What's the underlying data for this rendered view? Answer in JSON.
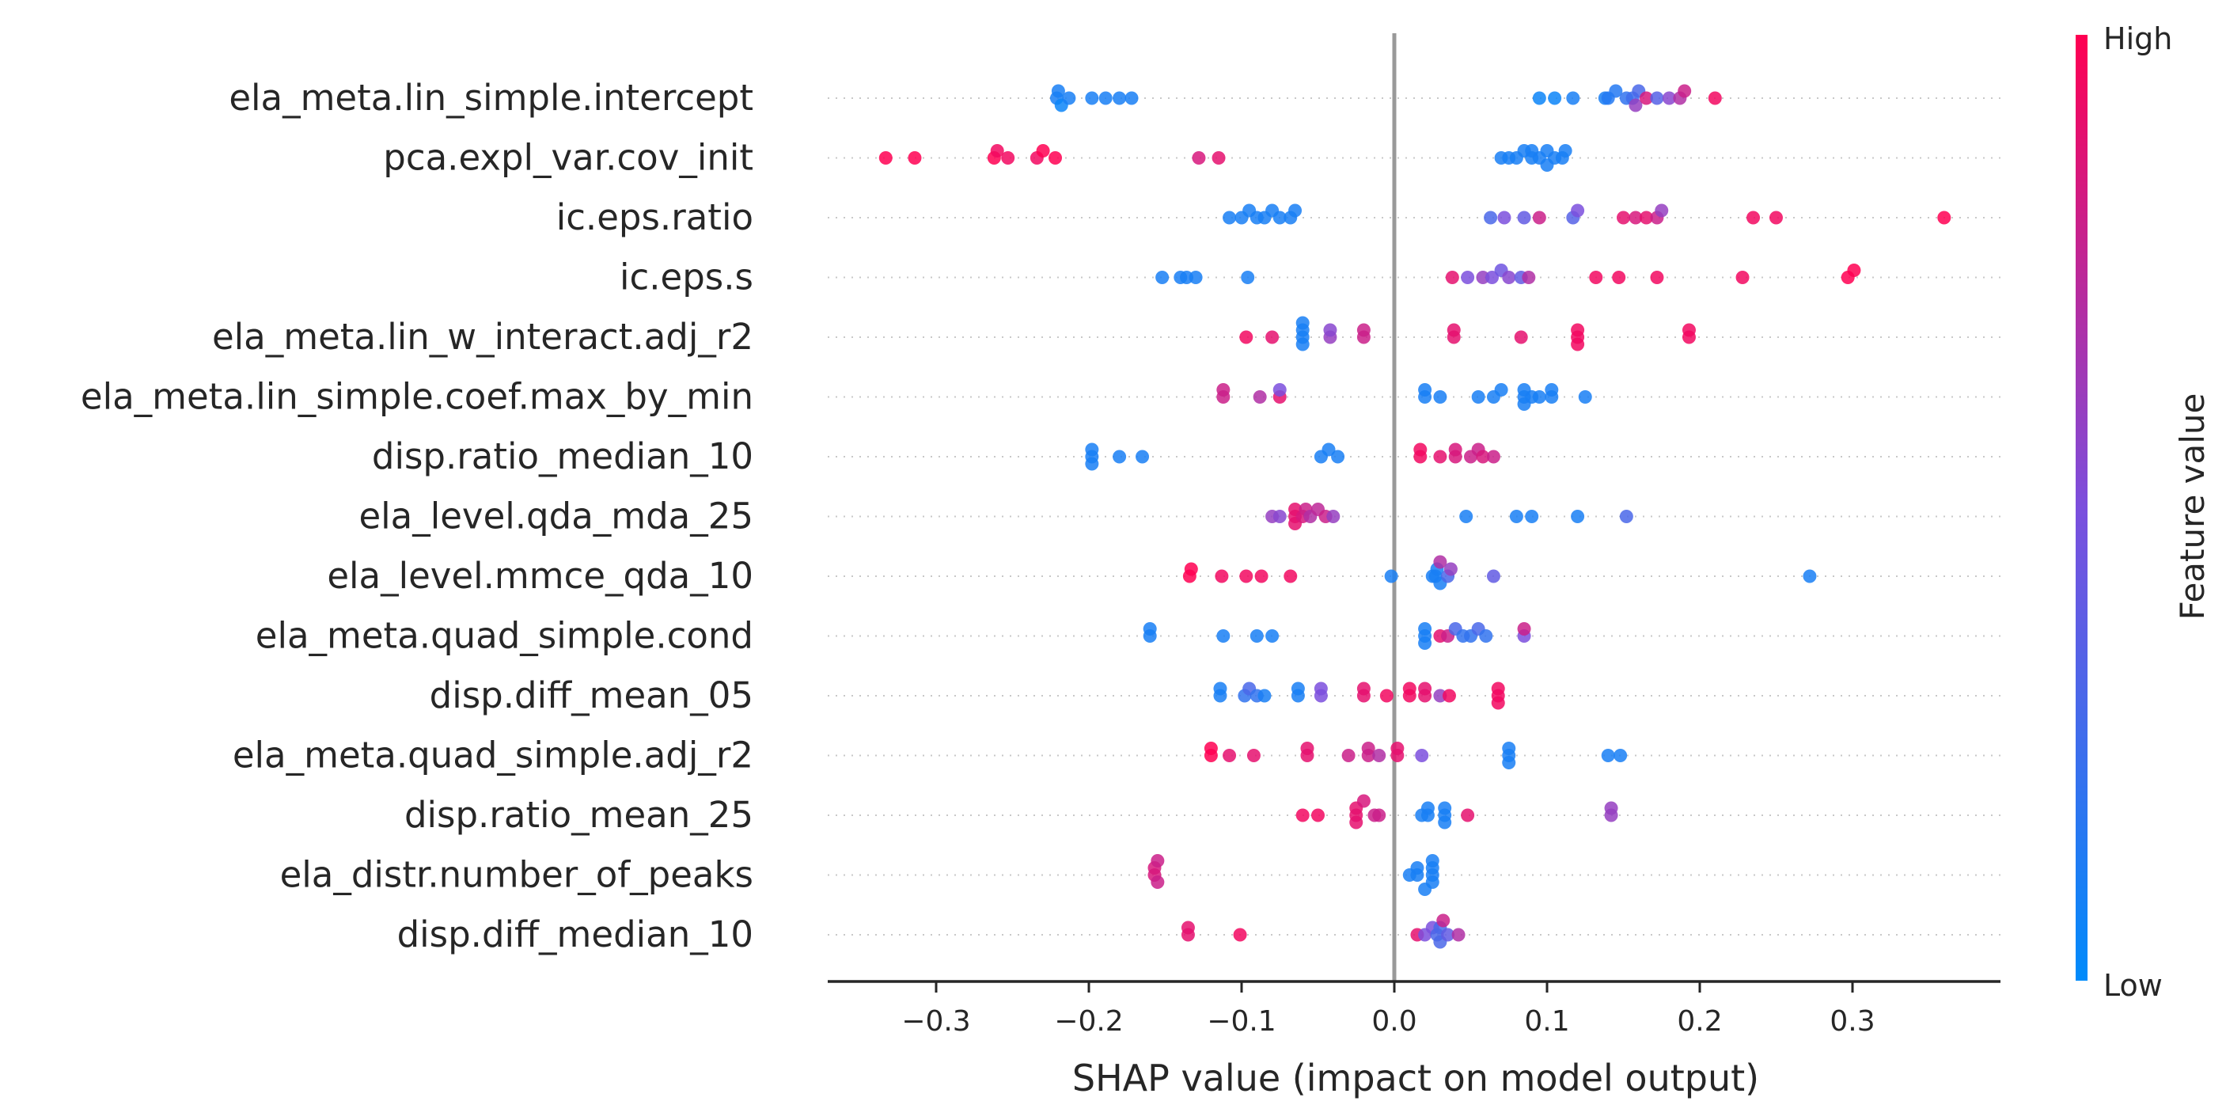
{
  "chart_data": {
    "type": "scatter",
    "subtype": "shap-beeswarm",
    "xlabel": "SHAP value (impact on model output)",
    "xlim": [
      -0.37,
      0.39
    ],
    "xticks": [
      "−0.3",
      "−0.2",
      "−0.1",
      "0.0",
      "0.1",
      "0.2",
      "0.3"
    ],
    "xtick_values": [
      -0.3,
      -0.2,
      -0.1,
      0.0,
      0.1,
      0.2,
      0.3
    ],
    "zero_line": true,
    "colorbar": {
      "label": "Feature value",
      "high_label": "High",
      "low_label": "Low",
      "low_color": "#008bfb",
      "high_color": "#ff0052"
    },
    "features": [
      {
        "name": "ela_meta.lin_simple.intercept",
        "points": [
          [
            -0.221,
            0.1
          ],
          [
            -0.22,
            0.1
          ],
          [
            -0.218,
            0.05
          ],
          [
            -0.213,
            0.1
          ],
          [
            -0.198,
            0.1
          ],
          [
            -0.189,
            0.1
          ],
          [
            -0.18,
            0.1
          ],
          [
            -0.172,
            0.1
          ],
          [
            0.095,
            0.05
          ],
          [
            0.105,
            0.05
          ],
          [
            0.117,
            0.1
          ],
          [
            0.138,
            0.1
          ],
          [
            0.14,
            0.15
          ],
          [
            0.145,
            0.15
          ],
          [
            0.152,
            0.2
          ],
          [
            0.156,
            0.25
          ],
          [
            0.16,
            0.3
          ],
          [
            0.158,
            0.6
          ],
          [
            0.165,
            0.85
          ],
          [
            0.172,
            0.35
          ],
          [
            0.18,
            0.55
          ],
          [
            0.187,
            0.7
          ],
          [
            0.19,
            0.8
          ],
          [
            0.21,
            0.95
          ]
        ]
      },
      {
        "name": "pca.expl_var.cov_init",
        "points": [
          [
            -0.333,
            1
          ],
          [
            -0.314,
            1
          ],
          [
            -0.262,
            1
          ],
          [
            -0.26,
            0.95
          ],
          [
            -0.253,
            0.95
          ],
          [
            -0.234,
            0.95
          ],
          [
            -0.23,
            1
          ],
          [
            -0.222,
            1
          ],
          [
            -0.128,
            0.85
          ],
          [
            -0.115,
            0.9
          ],
          [
            0.07,
            0.1
          ],
          [
            0.075,
            0.1
          ],
          [
            0.08,
            0.1
          ],
          [
            0.085,
            0.1
          ],
          [
            0.09,
            0.1
          ],
          [
            0.095,
            0.1
          ],
          [
            0.1,
            0.1
          ],
          [
            0.105,
            0.1
          ],
          [
            0.11,
            0.1
          ],
          [
            0.112,
            0.1
          ],
          [
            0.09,
            0.1
          ],
          [
            0.1,
            0.1
          ]
        ]
      },
      {
        "name": "ic.eps.ratio",
        "points": [
          [
            -0.108,
            0.1
          ],
          [
            -0.1,
            0.1
          ],
          [
            -0.095,
            0.1
          ],
          [
            -0.09,
            0.1
          ],
          [
            -0.085,
            0.1
          ],
          [
            -0.08,
            0.1
          ],
          [
            -0.075,
            0.1
          ],
          [
            -0.068,
            0.1
          ],
          [
            -0.065,
            0.1
          ],
          [
            0.063,
            0.3
          ],
          [
            0.072,
            0.5
          ],
          [
            0.085,
            0.4
          ],
          [
            0.095,
            0.8
          ],
          [
            0.117,
            0.35
          ],
          [
            0.12,
            0.5
          ],
          [
            0.15,
            0.9
          ],
          [
            0.158,
            0.85
          ],
          [
            0.165,
            0.9
          ],
          [
            0.172,
            0.8
          ],
          [
            0.175,
            0.6
          ],
          [
            0.235,
            0.95
          ],
          [
            0.25,
            0.95
          ],
          [
            0.36,
            1
          ]
        ]
      },
      {
        "name": "ic.eps.s",
        "points": [
          [
            -0.152,
            0.1
          ],
          [
            -0.14,
            0.1
          ],
          [
            -0.136,
            0.1
          ],
          [
            -0.13,
            0.1
          ],
          [
            -0.096,
            0.1
          ],
          [
            0.038,
            0.9
          ],
          [
            0.048,
            0.5
          ],
          [
            0.058,
            0.6
          ],
          [
            0.064,
            0.5
          ],
          [
            0.07,
            0.45
          ],
          [
            0.075,
            0.55
          ],
          [
            0.083,
            0.4
          ],
          [
            0.088,
            0.7
          ],
          [
            0.132,
            0.95
          ],
          [
            0.147,
            0.95
          ],
          [
            0.172,
            0.95
          ],
          [
            0.228,
            0.95
          ],
          [
            0.297,
            1
          ],
          [
            0.301,
            1
          ]
        ]
      },
      {
        "name": "ela_meta.lin_w_interact.adj_r2",
        "points": [
          [
            -0.097,
            0.95
          ],
          [
            -0.08,
            0.9
          ],
          [
            -0.06,
            0.1
          ],
          [
            -0.06,
            0.1
          ],
          [
            -0.06,
            0.1
          ],
          [
            -0.06,
            0.1
          ],
          [
            -0.042,
            0.6
          ],
          [
            -0.042,
            0.55
          ],
          [
            -0.02,
            0.8
          ],
          [
            -0.02,
            0.8
          ],
          [
            0.039,
            0.9
          ],
          [
            0.039,
            0.9
          ],
          [
            0.083,
            0.9
          ],
          [
            0.12,
            0.95
          ],
          [
            0.12,
            0.95
          ],
          [
            0.12,
            0.95
          ],
          [
            0.193,
            0.95
          ],
          [
            0.193,
            0.95
          ]
        ]
      },
      {
        "name": "ela_meta.lin_simple.coef.max_by_min",
        "points": [
          [
            -0.112,
            0.8
          ],
          [
            -0.112,
            0.8
          ],
          [
            -0.088,
            0.7
          ],
          [
            -0.075,
            0.9
          ],
          [
            -0.075,
            0.5
          ],
          [
            0.02,
            0.1
          ],
          [
            0.02,
            0.1
          ],
          [
            0.03,
            0.1
          ],
          [
            0.055,
            0.1
          ],
          [
            0.065,
            0.1
          ],
          [
            0.07,
            0.1
          ],
          [
            0.085,
            0.1
          ],
          [
            0.085,
            0.1
          ],
          [
            0.085,
            0.1
          ],
          [
            0.09,
            0.1
          ],
          [
            0.095,
            0.1
          ],
          [
            0.103,
            0.1
          ],
          [
            0.103,
            0.1
          ],
          [
            0.125,
            0.1
          ]
        ]
      },
      {
        "name": "disp.ratio_median_10",
        "points": [
          [
            -0.198,
            0.1
          ],
          [
            -0.198,
            0.1
          ],
          [
            -0.198,
            0.1
          ],
          [
            -0.18,
            0.1
          ],
          [
            -0.165,
            0.1
          ],
          [
            -0.048,
            0.1
          ],
          [
            -0.043,
            0.1
          ],
          [
            -0.037,
            0.1
          ],
          [
            0.017,
            0.95
          ],
          [
            0.017,
            0.95
          ],
          [
            0.03,
            0.9
          ],
          [
            0.04,
            0.85
          ],
          [
            0.04,
            0.85
          ],
          [
            0.05,
            0.8
          ],
          [
            0.055,
            0.8
          ],
          [
            0.058,
            0.85
          ],
          [
            0.065,
            0.8
          ]
        ]
      },
      {
        "name": "ela_level.qda_mda_25",
        "points": [
          [
            -0.08,
            0.6
          ],
          [
            -0.075,
            0.55
          ],
          [
            -0.065,
            0.9
          ],
          [
            -0.065,
            0.9
          ],
          [
            -0.065,
            0.9
          ],
          [
            -0.06,
            0.85
          ],
          [
            -0.058,
            0.8
          ],
          [
            -0.055,
            0.7
          ],
          [
            -0.05,
            0.75
          ],
          [
            -0.045,
            0.8
          ],
          [
            -0.04,
            0.6
          ],
          [
            0.047,
            0.1
          ],
          [
            0.08,
            0.1
          ],
          [
            0.09,
            0.1
          ],
          [
            0.12,
            0.1
          ],
          [
            0.152,
            0.3
          ]
        ]
      },
      {
        "name": "ela_level.mmce_qda_10",
        "points": [
          [
            -0.134,
            1
          ],
          [
            -0.133,
            1
          ],
          [
            -0.113,
            0.95
          ],
          [
            -0.097,
            0.95
          ],
          [
            -0.087,
            0.95
          ],
          [
            -0.068,
            0.95
          ],
          [
            -0.002,
            0.1
          ],
          [
            0.025,
            0.1
          ],
          [
            0.027,
            0.1
          ],
          [
            0.028,
            0.1
          ],
          [
            0.03,
            0.1
          ],
          [
            0.03,
            0.7
          ],
          [
            0.035,
            0.3
          ],
          [
            0.037,
            0.6
          ],
          [
            0.065,
            0.4
          ],
          [
            0.272,
            0.1
          ]
        ]
      },
      {
        "name": "ela_meta.quad_simple.cond",
        "points": [
          [
            -0.16,
            0.1
          ],
          [
            -0.16,
            0.1
          ],
          [
            -0.112,
            0.1
          ],
          [
            -0.09,
            0.1
          ],
          [
            -0.08,
            0.1
          ],
          [
            0.02,
            0.1
          ],
          [
            0.02,
            0.1
          ],
          [
            0.02,
            0.1
          ],
          [
            0.03,
            0.9
          ],
          [
            0.035,
            0.8
          ],
          [
            0.04,
            0.3
          ],
          [
            0.045,
            0.2
          ],
          [
            0.05,
            0.2
          ],
          [
            0.055,
            0.3
          ],
          [
            0.06,
            0.2
          ],
          [
            0.085,
            0.5
          ],
          [
            0.085,
            0.8
          ]
        ]
      },
      {
        "name": "disp.diff_mean_05",
        "points": [
          [
            -0.114,
            0.1
          ],
          [
            -0.114,
            0.1
          ],
          [
            -0.098,
            0.2
          ],
          [
            -0.095,
            0.3
          ],
          [
            -0.09,
            0.2
          ],
          [
            -0.085,
            0.1
          ],
          [
            -0.063,
            0.1
          ],
          [
            -0.063,
            0.1
          ],
          [
            -0.048,
            0.5
          ],
          [
            -0.048,
            0.5
          ],
          [
            -0.02,
            0.9
          ],
          [
            -0.02,
            0.9
          ],
          [
            -0.005,
            0.95
          ],
          [
            0.01,
            0.95
          ],
          [
            0.01,
            0.95
          ],
          [
            0.02,
            0.9
          ],
          [
            0.02,
            0.9
          ],
          [
            0.03,
            0.6
          ],
          [
            0.036,
            0.95
          ],
          [
            0.068,
            0.95
          ],
          [
            0.068,
            0.95
          ],
          [
            0.068,
            0.95
          ]
        ]
      },
      {
        "name": "ela_meta.quad_simple.adj_r2",
        "points": [
          [
            -0.12,
            1
          ],
          [
            -0.12,
            1
          ],
          [
            -0.108,
            0.9
          ],
          [
            -0.092,
            0.9
          ],
          [
            -0.057,
            0.9
          ],
          [
            -0.057,
            0.9
          ],
          [
            -0.03,
            0.8
          ],
          [
            -0.017,
            0.8
          ],
          [
            -0.017,
            0.8
          ],
          [
            -0.01,
            0.7
          ],
          [
            0.002,
            0.9
          ],
          [
            0.002,
            0.9
          ],
          [
            0.018,
            0.5
          ],
          [
            0.075,
            0.1
          ],
          [
            0.075,
            0.1
          ],
          [
            0.075,
            0.1
          ],
          [
            0.14,
            0.1
          ],
          [
            0.148,
            0.1
          ]
        ]
      },
      {
        "name": "disp.ratio_mean_25",
        "points": [
          [
            -0.06,
            0.95
          ],
          [
            -0.05,
            0.95
          ],
          [
            -0.025,
            0.9
          ],
          [
            -0.025,
            0.9
          ],
          [
            -0.025,
            0.9
          ],
          [
            -0.02,
            0.85
          ],
          [
            -0.013,
            0.8
          ],
          [
            -0.01,
            0.8
          ],
          [
            0.018,
            0.1
          ],
          [
            0.022,
            0.1
          ],
          [
            0.033,
            0.1
          ],
          [
            0.033,
            0.1
          ],
          [
            0.033,
            0.1
          ],
          [
            0.022,
            0.1
          ],
          [
            0.048,
            0.9
          ],
          [
            0.142,
            0.6
          ],
          [
            0.142,
            0.6
          ]
        ]
      },
      {
        "name": "ela_distr.number_of_peaks",
        "points": [
          [
            -0.157,
            0.85
          ],
          [
            -0.157,
            0.85
          ],
          [
            -0.155,
            0.8
          ],
          [
            -0.155,
            0.8
          ],
          [
            0.01,
            0.1
          ],
          [
            0.015,
            0.1
          ],
          [
            0.025,
            0.1
          ],
          [
            0.025,
            0.1
          ],
          [
            0.025,
            0.1
          ],
          [
            0.025,
            0.1
          ],
          [
            0.02,
            0.1
          ],
          [
            0.015,
            0.1
          ]
        ]
      },
      {
        "name": "disp.diff_median_10",
        "points": [
          [
            -0.135,
            0.9
          ],
          [
            -0.135,
            0.9
          ],
          [
            -0.101,
            0.95
          ],
          [
            0.015,
            0.9
          ],
          [
            0.02,
            0.5
          ],
          [
            0.025,
            0.5
          ],
          [
            0.028,
            0.3
          ],
          [
            0.03,
            0.3
          ],
          [
            0.03,
            0.3
          ],
          [
            0.032,
            0.8
          ],
          [
            0.035,
            0.4
          ],
          [
            0.042,
            0.7
          ]
        ]
      }
    ]
  }
}
